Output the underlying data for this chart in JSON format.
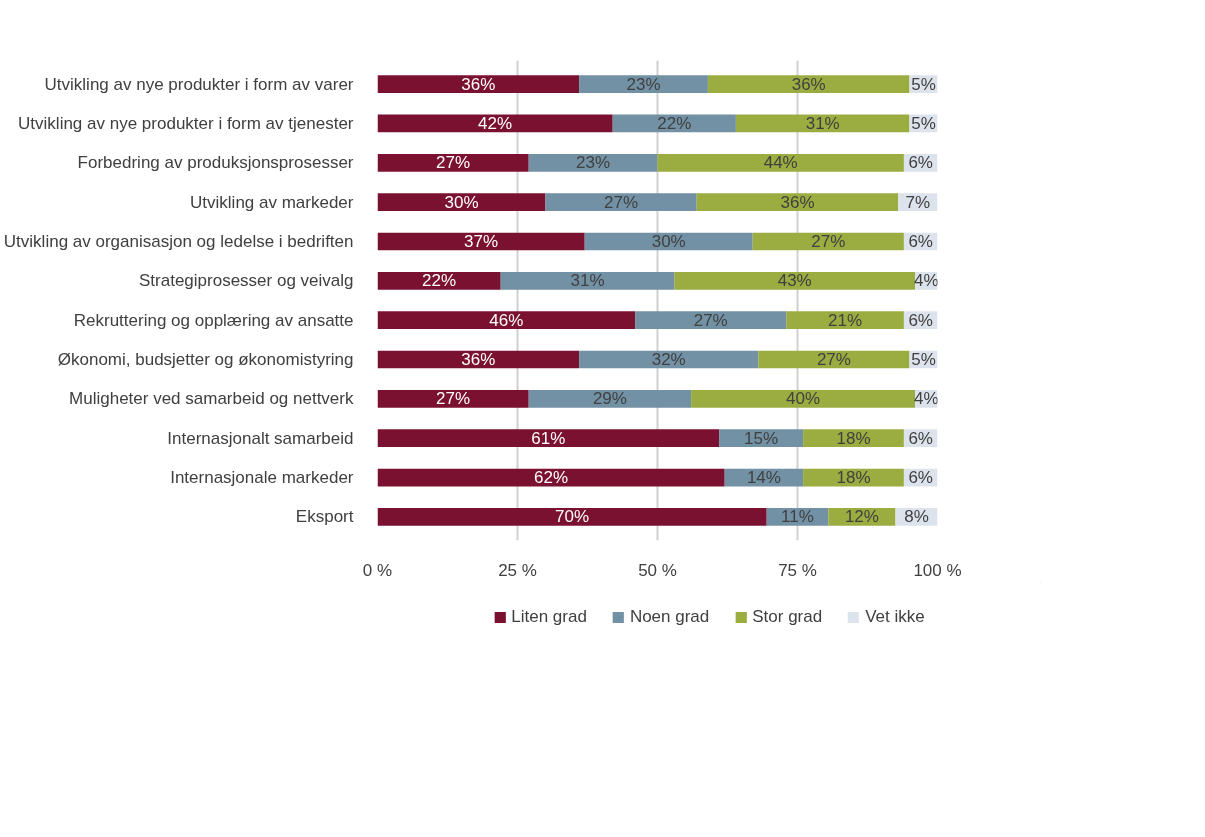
{
  "chart_data": {
    "type": "bar",
    "orientation": "horizontal",
    "stacked": true,
    "categories": [
      "Utvikling av nye produkter i form av varer",
      "Utvikling av nye produkter i form av tjenester",
      "Forbedring av produksjonsprosesser",
      "Utvikling av markeder",
      "Utvikling av organisasjon og ledelse i bedriften",
      "Strategiprosesser og veivalg",
      "Rekruttering og opplæring av ansatte",
      "Økonomi, budsjetter og økonomistyring",
      "Muligheter ved samarbeid og nettverk",
      "Internasjonalt samarbeid",
      "Internasjonale markeder",
      "Eksport"
    ],
    "series": [
      {
        "name": "Liten grad",
        "color": "#7b1130",
        "values": [
          36,
          42,
          27,
          30,
          37,
          22,
          46,
          36,
          27,
          61,
          62,
          69.5
        ],
        "value_labels": [
          "36%",
          "42%",
          "27%",
          "30%",
          "37%",
          "22%",
          "46%",
          "36%",
          "27%",
          "61%",
          "62%",
          "70%"
        ]
      },
      {
        "name": "Noen grad",
        "color": "#7391a4",
        "values": [
          23,
          22,
          23,
          27,
          30,
          31,
          27,
          32,
          29,
          15,
          14,
          11
        ],
        "value_labels": [
          "23%",
          "22%",
          "23%",
          "27%",
          "30%",
          "31%",
          "27%",
          "32%",
          "29%",
          "15%",
          "14%",
          "11%"
        ]
      },
      {
        "name": "Stor grad",
        "color": "#9bad40",
        "values": [
          36,
          31,
          44,
          36,
          27,
          43,
          21,
          27,
          40,
          18,
          18,
          12
        ],
        "value_labels": [
          "36%",
          "31%",
          "44%",
          "36%",
          "27%",
          "43%",
          "21%",
          "27%",
          "40%",
          "18%",
          "18%",
          "12%"
        ]
      },
      {
        "name": "Vet ikke",
        "color": "#dde3ec",
        "values": [
          5,
          5,
          6,
          7,
          6,
          4,
          6,
          5,
          4,
          6,
          6,
          7.5
        ],
        "value_labels": [
          "5%",
          "5%",
          "6%",
          "7%",
          "6%",
          "4%",
          "6%",
          "5%",
          "4%",
          "6%",
          "6%",
          "8%"
        ]
      }
    ],
    "xlim": [
      0,
      100
    ],
    "xticks": [
      {
        "value": 0,
        "label": "0 %"
      },
      {
        "value": 25,
        "label": "25 %"
      },
      {
        "value": 50,
        "label": "50 %"
      },
      {
        "value": 75,
        "label": "75 %"
      },
      {
        "value": 100,
        "label": "100 %"
      }
    ],
    "grid": "x",
    "legend": "bottom"
  }
}
